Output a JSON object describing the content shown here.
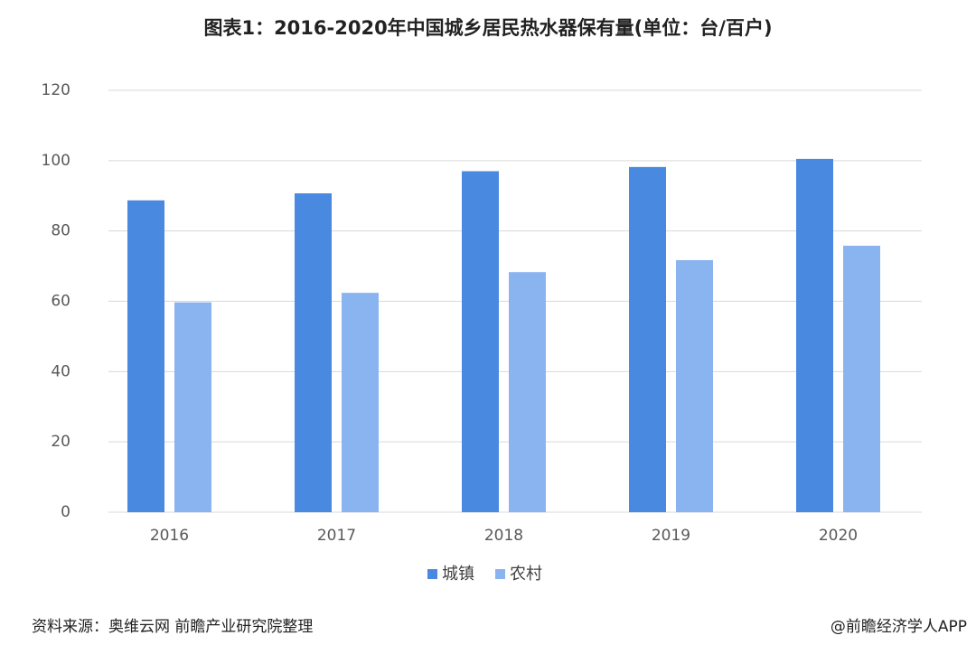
{
  "chart_data": {
    "type": "bar",
    "title": "图表1：2016-2020年中国城乡居民热水器保有量(单位：台/百户)",
    "categories": [
      "2016",
      "2017",
      "2018",
      "2019",
      "2020"
    ],
    "series": [
      {
        "name": "城镇",
        "color": "#4a89e0",
        "values": [
          88.7,
          90.7,
          97.0,
          98.2,
          100.5
        ]
      },
      {
        "name": "农村",
        "color": "#8ab4ef",
        "values": [
          59.7,
          62.4,
          68.3,
          71.7,
          75.8
        ]
      }
    ],
    "ylim": [
      0,
      120
    ],
    "yticks": [
      0,
      20,
      40,
      60,
      80,
      100,
      120
    ],
    "grid": true,
    "legend": "bottom",
    "source": "资料来源：奥维云网 前瞻产业研究院整理",
    "footer": "@前瞻经济学人APP"
  }
}
